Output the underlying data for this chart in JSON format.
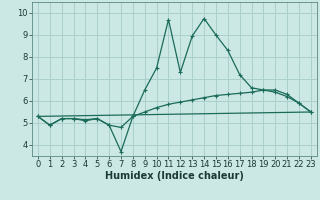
{
  "xlabel": "Humidex (Indice chaleur)",
  "background_color": "#cce8e4",
  "grid_color": "#aacfcc",
  "line_color": "#1a6b5a",
  "xlim": [
    -0.5,
    23.5
  ],
  "ylim": [
    3.5,
    10.5
  ],
  "xticks": [
    0,
    1,
    2,
    3,
    4,
    5,
    6,
    7,
    8,
    9,
    10,
    11,
    12,
    13,
    14,
    15,
    16,
    17,
    18,
    19,
    20,
    21,
    22,
    23
  ],
  "yticks": [
    4,
    5,
    6,
    7,
    8,
    9,
    10
  ],
  "line1_x": [
    0,
    1,
    2,
    3,
    4,
    5,
    6,
    7,
    8,
    9,
    10,
    11,
    12,
    13,
    14,
    15,
    16,
    17,
    18,
    19,
    20,
    21,
    22,
    23
  ],
  "line1_y": [
    5.3,
    4.9,
    5.2,
    5.2,
    5.15,
    5.2,
    4.9,
    3.7,
    5.3,
    6.5,
    7.5,
    9.7,
    7.3,
    8.95,
    9.75,
    9.0,
    8.3,
    7.2,
    6.6,
    6.5,
    6.4,
    6.2,
    5.9,
    5.5
  ],
  "line2_x": [
    0,
    1,
    2,
    3,
    4,
    5,
    6,
    7,
    8,
    9,
    10,
    11,
    12,
    13,
    14,
    15,
    16,
    17,
    18,
    19,
    20,
    21,
    22,
    23
  ],
  "line2_y": [
    5.3,
    4.9,
    5.2,
    5.2,
    5.1,
    5.2,
    4.9,
    4.8,
    5.3,
    5.5,
    5.7,
    5.85,
    5.95,
    6.05,
    6.15,
    6.25,
    6.3,
    6.35,
    6.4,
    6.5,
    6.5,
    6.3,
    5.9,
    5.5
  ],
  "line3_x": [
    0,
    23
  ],
  "line3_y": [
    5.3,
    5.5
  ],
  "xlabel_fontsize": 7,
  "tick_fontsize": 6
}
